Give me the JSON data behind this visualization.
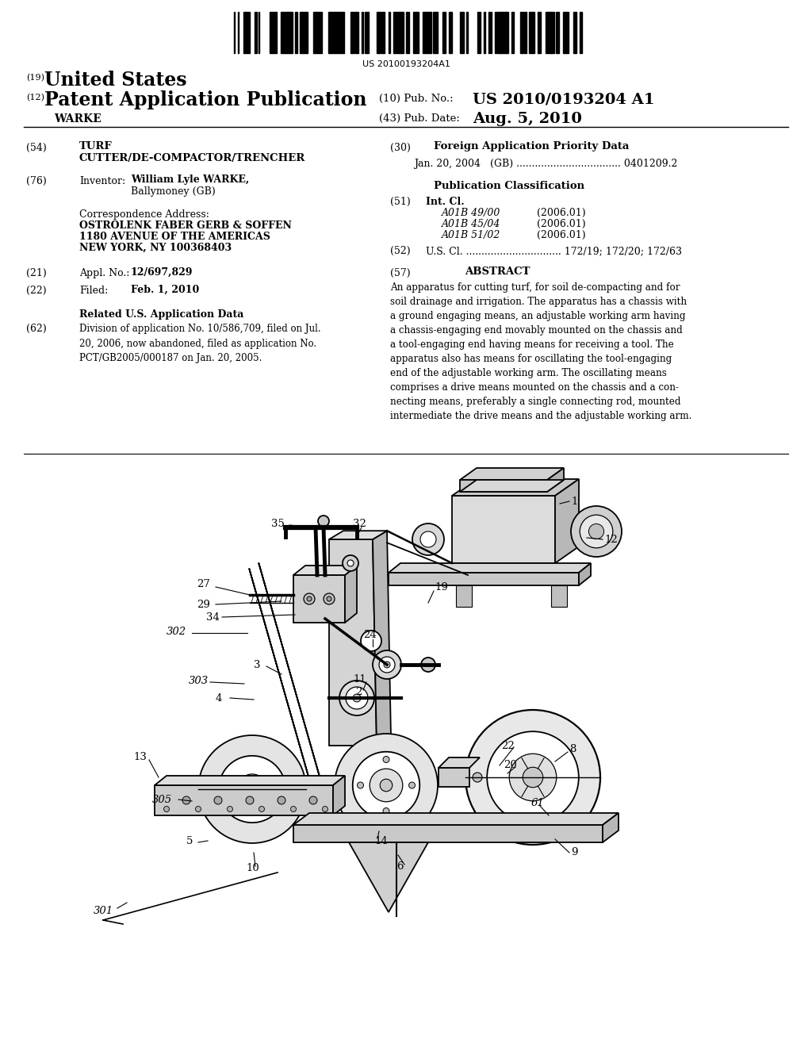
{
  "bg_color": "#ffffff",
  "barcode_text": "US 20100193204A1",
  "country_prefix": "(19)",
  "country_name": "United States",
  "pub_type_prefix": "(12)",
  "pub_type": "Patent Application Publication",
  "pub_no_label": "(10) Pub. No.:",
  "pub_no": "US 2010/0193204 A1",
  "inventor_last": "WARKE",
  "pub_date_label": "(43) Pub. Date:",
  "pub_date": "Aug. 5, 2010",
  "field54_line1": "TURF",
  "field54_line2": "CUTTER/DE-COMPACTOR/TRENCHER",
  "field76_inv": "William Lyle WARKE,",
  "field76_city": "Ballymoney (GB)",
  "corr_line1": "OSTROLENK FABER GERB & SOFFEN",
  "corr_line2": "1180 AVENUE OF THE AMERICAS",
  "corr_line3": "NEW YORK, NY 100368403",
  "field21_val": "12/697,829",
  "field22_val": "Feb. 1, 2010",
  "field62_text": "Division of application No. 10/586,709, filed on Jul.\n20, 2006, now abandoned, filed as application No.\nPCT/GB2005/000187 on Jan. 20, 2005.",
  "field30_text": "Jan. 20, 2004   (GB) .................................. 0401209.2",
  "field51_items": [
    [
      "A01B 49/00",
      "(2006.01)"
    ],
    [
      "A01B 45/04",
      "(2006.01)"
    ],
    [
      "A01B 51/02",
      "(2006.01)"
    ]
  ],
  "field52_text": "U.S. Cl. ............................... 172/19; 172/20; 172/63",
  "abstract": "An apparatus for cutting turf, for soil de-compacting and for\nsoil drainage and irrigation. The apparatus has a chassis with\na ground engaging means, an adjustable working arm having\na chassis-engaging end movably mounted on the chassis and\na tool-engaging end having means for receiving a tool. The\napparatus also has means for oscillating the tool-engaging\nend of the adjustable working arm. The oscillating means\ncomprises a drive means mounted on the chassis and a con-\nnecting means, preferably a single connecting rod, mounted\nintermediate the drive means and the adjustable working arm."
}
